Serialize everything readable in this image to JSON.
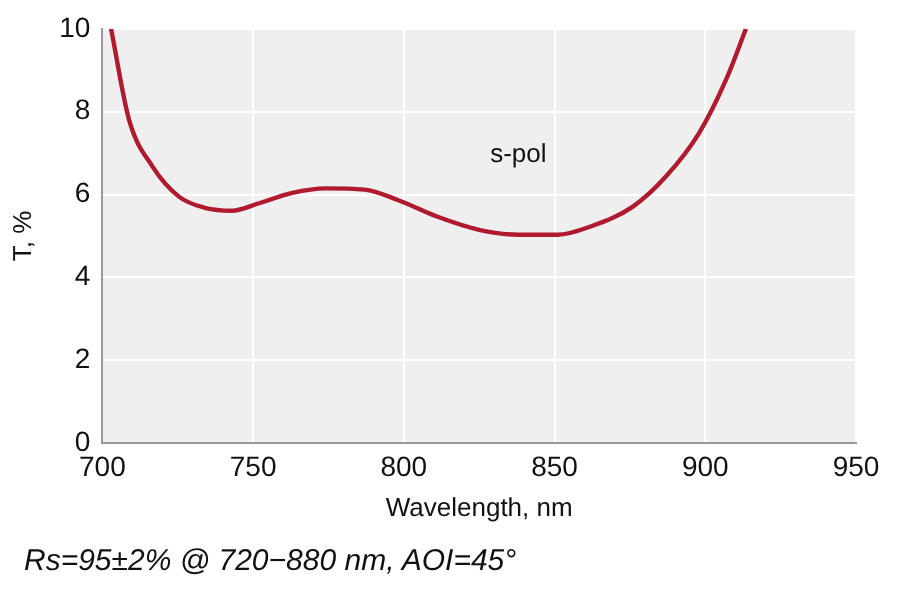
{
  "chart_data": {
    "type": "line",
    "xlabel": "Wavelength, nm",
    "ylabel": "T, %",
    "x": [
      702.9,
      708.8,
      716.6,
      725.4,
      734,
      743,
      752,
      763,
      774,
      787,
      798,
      811,
      825,
      838,
      851,
      862,
      876,
      887,
      898,
      907,
      913.5
    ],
    "series": [
      {
        "name": "s-pol",
        "color": "#b01a2e",
        "values": [
          10,
          7.82,
          6.68,
          5.95,
          5.68,
          5.61,
          5.79,
          6.04,
          6.15,
          6.12,
          5.87,
          5.47,
          5.15,
          5.03,
          5.03,
          5.23,
          5.71,
          6.44,
          7.49,
          8.79,
          10
        ]
      }
    ],
    "xlim": [
      700,
      950
    ],
    "xticks": [
      700,
      750,
      800,
      850,
      900,
      950
    ],
    "ylim": [
      0,
      10
    ],
    "yticks": [
      0,
      2,
      4,
      6,
      8,
      10
    ],
    "grid": true,
    "legend": false,
    "marker": "none",
    "line_style": "solid",
    "annotations": [
      "Rs=95±2% @ 720−880 nm, AOI=45°"
    ]
  }
}
